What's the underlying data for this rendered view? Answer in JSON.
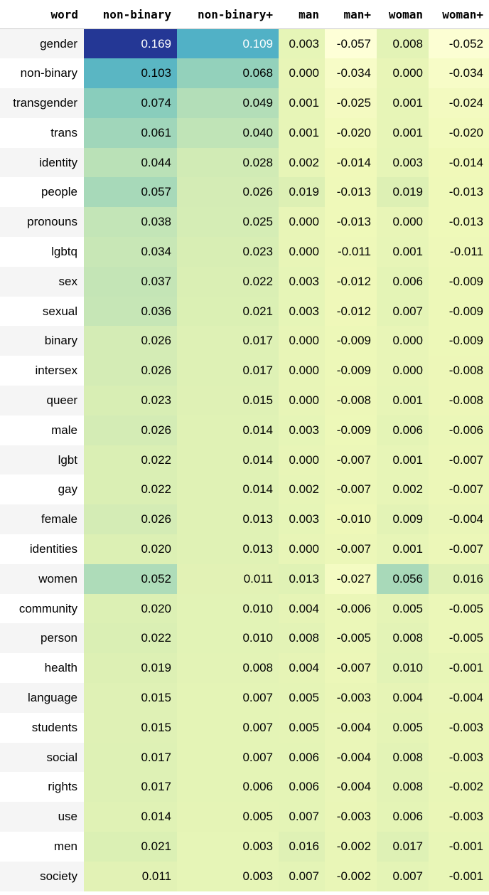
{
  "chart_data": {
    "type": "table",
    "columns": [
      "word",
      "non-binary",
      "non-binary+",
      "man",
      "man+",
      "woman",
      "woman+"
    ],
    "rows": [
      {
        "word": "gender",
        "values": [
          0.169,
          0.109,
          0.003,
          -0.057,
          0.008,
          -0.052
        ]
      },
      {
        "word": "non-binary",
        "values": [
          0.103,
          0.068,
          0.0,
          -0.034,
          0.0,
          -0.034
        ]
      },
      {
        "word": "transgender",
        "values": [
          0.074,
          0.049,
          0.001,
          -0.025,
          0.001,
          -0.024
        ]
      },
      {
        "word": "trans",
        "values": [
          0.061,
          0.04,
          0.001,
          -0.02,
          0.001,
          -0.02
        ]
      },
      {
        "word": "identity",
        "values": [
          0.044,
          0.028,
          0.002,
          -0.014,
          0.003,
          -0.014
        ]
      },
      {
        "word": "people",
        "values": [
          0.057,
          0.026,
          0.019,
          -0.013,
          0.019,
          -0.013
        ]
      },
      {
        "word": "pronouns",
        "values": [
          0.038,
          0.025,
          0.0,
          -0.013,
          0.0,
          -0.013
        ]
      },
      {
        "word": "lgbtq",
        "values": [
          0.034,
          0.023,
          0.0,
          -0.011,
          0.001,
          -0.011
        ]
      },
      {
        "word": "sex",
        "values": [
          0.037,
          0.022,
          0.003,
          -0.012,
          0.006,
          -0.009
        ]
      },
      {
        "word": "sexual",
        "values": [
          0.036,
          0.021,
          0.003,
          -0.012,
          0.007,
          -0.009
        ]
      },
      {
        "word": "binary",
        "values": [
          0.026,
          0.017,
          0.0,
          -0.009,
          0.0,
          -0.009
        ]
      },
      {
        "word": "intersex",
        "values": [
          0.026,
          0.017,
          0.0,
          -0.009,
          0.0,
          -0.008
        ]
      },
      {
        "word": "queer",
        "values": [
          0.023,
          0.015,
          0.0,
          -0.008,
          0.001,
          -0.008
        ]
      },
      {
        "word": "male",
        "values": [
          0.026,
          0.014,
          0.003,
          -0.009,
          0.006,
          -0.006
        ]
      },
      {
        "word": "lgbt",
        "values": [
          0.022,
          0.014,
          0.0,
          -0.007,
          0.001,
          -0.007
        ]
      },
      {
        "word": "gay",
        "values": [
          0.022,
          0.014,
          0.002,
          -0.007,
          0.002,
          -0.007
        ]
      },
      {
        "word": "female",
        "values": [
          0.026,
          0.013,
          0.003,
          -0.01,
          0.009,
          -0.004
        ]
      },
      {
        "word": "identities",
        "values": [
          0.02,
          0.013,
          0.0,
          -0.007,
          0.001,
          -0.007
        ]
      },
      {
        "word": "women",
        "values": [
          0.052,
          0.011,
          0.013,
          -0.027,
          0.056,
          0.016
        ]
      },
      {
        "word": "community",
        "values": [
          0.02,
          0.01,
          0.004,
          -0.006,
          0.005,
          -0.005
        ]
      },
      {
        "word": "person",
        "values": [
          0.022,
          0.01,
          0.008,
          -0.005,
          0.008,
          -0.005
        ]
      },
      {
        "word": "health",
        "values": [
          0.019,
          0.008,
          0.004,
          -0.007,
          0.01,
          -0.001
        ]
      },
      {
        "word": "language",
        "values": [
          0.015,
          0.007,
          0.005,
          -0.003,
          0.004,
          -0.004
        ]
      },
      {
        "word": "students",
        "values": [
          0.015,
          0.007,
          0.005,
          -0.004,
          0.005,
          -0.003
        ]
      },
      {
        "word": "social",
        "values": [
          0.017,
          0.007,
          0.006,
          -0.004,
          0.008,
          -0.003
        ]
      },
      {
        "word": "rights",
        "values": [
          0.017,
          0.006,
          0.006,
          -0.004,
          0.008,
          -0.002
        ]
      },
      {
        "word": "use",
        "values": [
          0.014,
          0.005,
          0.007,
          -0.003,
          0.006,
          -0.003
        ]
      },
      {
        "word": "men",
        "values": [
          0.021,
          0.003,
          0.016,
          -0.002,
          0.017,
          -0.001
        ]
      },
      {
        "word": "society",
        "values": [
          0.011,
          0.003,
          0.007,
          -0.002,
          0.007,
          -0.001
        ]
      }
    ],
    "color_scale": "YlGnBu",
    "color_domain": [
      -0.06,
      0.17
    ]
  }
}
